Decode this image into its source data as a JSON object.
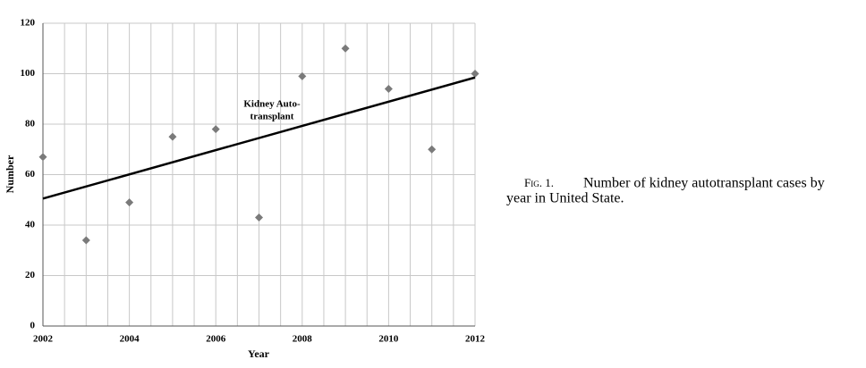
{
  "chart_data": {
    "type": "scatter",
    "x_label": "Year",
    "y_label": "Number",
    "x": [
      2002,
      2003,
      2004,
      2005,
      2006,
      2007,
      2008,
      2009,
      2010,
      2011,
      2012
    ],
    "series": [
      {
        "color": "#7a7a7a",
        "values": [
          67,
          34,
          49,
          75,
          78,
          43,
          99,
          110,
          94,
          70,
          100
        ]
      }
    ],
    "trend": {
      "color": "#000000",
      "x": [
        2002,
        2012
      ],
      "values": [
        50.5,
        98.5
      ]
    },
    "annotation": [
      "Kidney Auto-",
      "transplant"
    ],
    "xlim": [
      2002,
      2012
    ],
    "ylim": [
      0,
      120
    ],
    "xticks": [
      2002,
      2004,
      2006,
      2008,
      2010,
      2012
    ],
    "xgrid": [
      2002,
      2002.5,
      2003,
      2003.5,
      2004,
      2004.5,
      2005,
      2005.5,
      2006,
      2006.5,
      2007,
      2007.5,
      2008,
      2008.5,
      2009,
      2009.5,
      2010,
      2010.5,
      2011,
      2011.5,
      2012
    ],
    "yticks": [
      0,
      20,
      40,
      60,
      80,
      100,
      120
    ],
    "grid": true
  },
  "caption": {
    "label": "Fig. 1.",
    "lines": [
      "Number of kidney autotransplant cases by",
      "year in United State."
    ]
  }
}
